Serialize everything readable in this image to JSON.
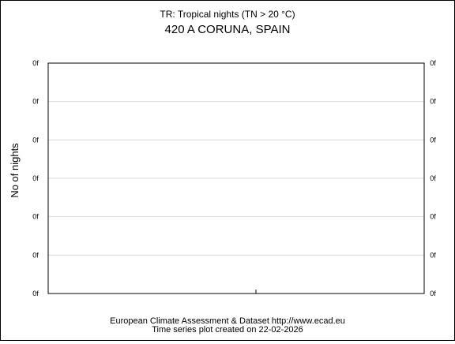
{
  "chart_data": {
    "type": "line",
    "title": "420 A CORUNA, SPAIN",
    "subtitle": "TR: Tropical nights (TN > 20 °C)",
    "xlabel": "",
    "ylabel": "No of nights",
    "y_tick_labels": [
      "0f",
      "0f",
      "0f",
      "0f",
      "0f",
      "0f",
      "0f"
    ],
    "x_tick_labels": [],
    "series": [],
    "grid": true,
    "legend": "none"
  },
  "footer": {
    "line1": "European Climate Assessment & Dataset  http://www.ecad.eu",
    "line2": "Time series plot created on 22-02-2026"
  },
  "colors": {
    "frame": "#000000",
    "grid": "#d9d9d9",
    "background": "#ffffff"
  }
}
